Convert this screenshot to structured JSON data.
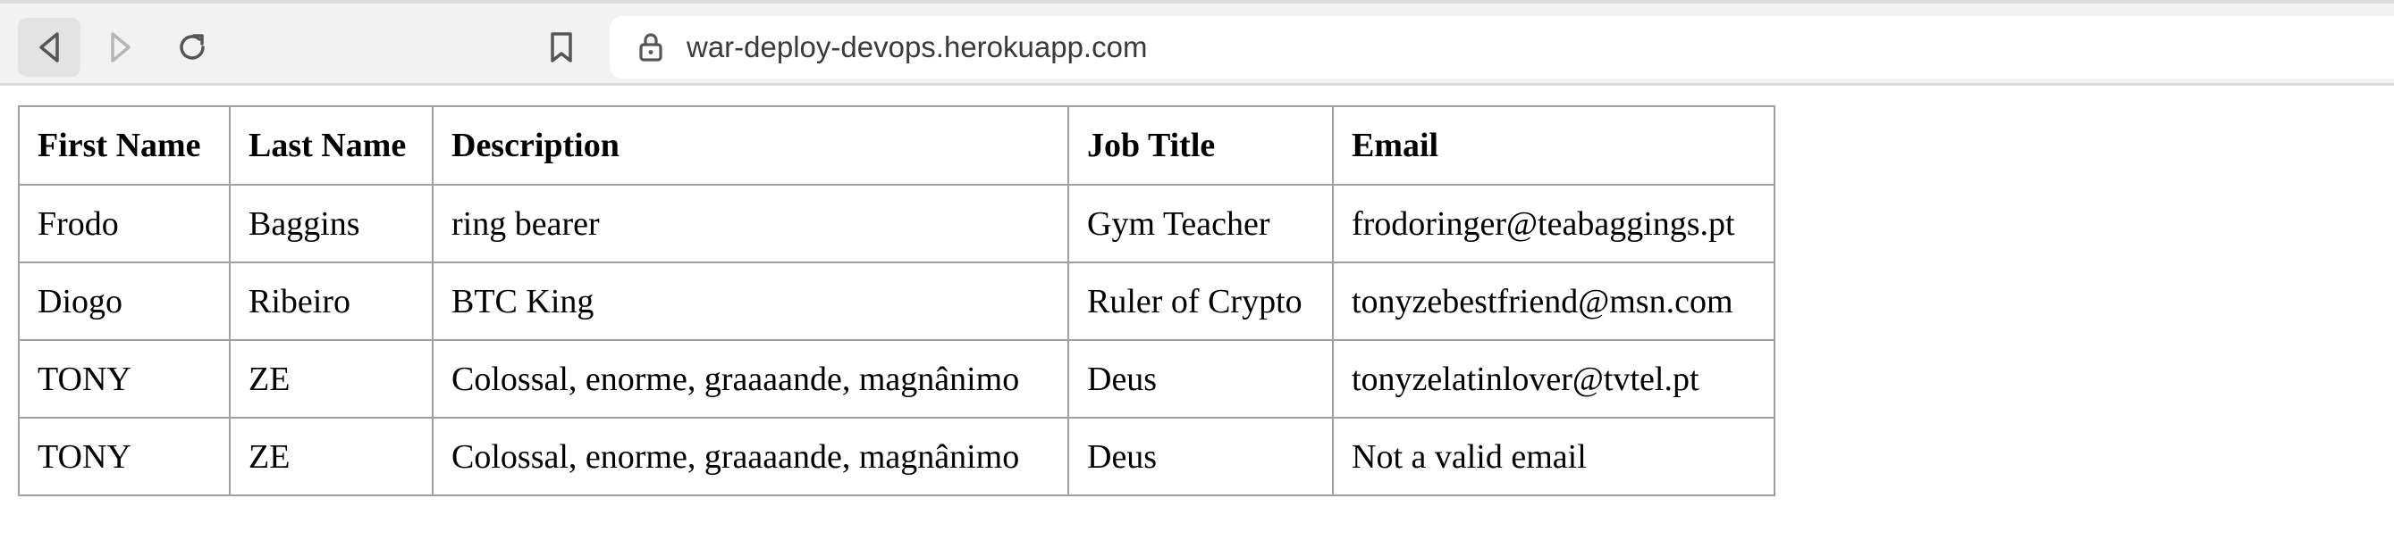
{
  "browser": {
    "url": "war-deploy-devops.herokuapp.com",
    "icons": {
      "back": "back-arrow-icon",
      "forward": "forward-arrow-icon",
      "reload": "reload-icon",
      "bookmark": "bookmark-icon",
      "lock": "lock-icon"
    }
  },
  "table": {
    "headers": [
      "First Name",
      "Last Name",
      "Description",
      "Job Title",
      "Email"
    ],
    "rows": [
      [
        "Frodo",
        "Baggins",
        "ring bearer",
        "Gym Teacher",
        "frodoringer@teabaggings.pt"
      ],
      [
        "Diogo",
        "Ribeiro",
        "BTC King",
        "Ruler of Crypto",
        "tonyzebestfriend@msn.com"
      ],
      [
        "TONY",
        "ZE",
        "Colossal, enorme, graaaande, magnânimo",
        "Deus",
        "tonyzelatinlover@tvtel.pt"
      ],
      [
        "TONY",
        "ZE",
        "Colossal, enorme, graaaande, magnânimo",
        "Deus",
        "Not a valid email"
      ]
    ]
  }
}
